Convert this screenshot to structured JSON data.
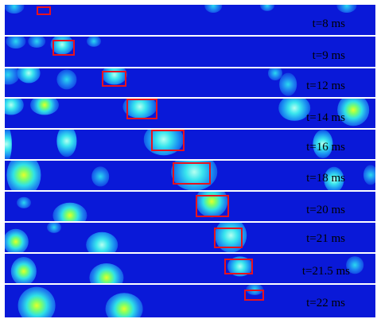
{
  "frames": [
    {
      "label": "t=8 ms"
    },
    {
      "label": "t=9 ms"
    },
    {
      "label": "t=12 ms"
    },
    {
      "label": "t=14 ms"
    },
    {
      "label": "t=16 ms"
    },
    {
      "label": "t=18 ms"
    },
    {
      "label": "t=20 ms"
    },
    {
      "label": "t=21 ms"
    },
    {
      "label": "t=21.5 ms"
    },
    {
      "label": "t=22 ms"
    }
  ],
  "colors": {
    "background": "#0a19d8",
    "separator": "#ffffff",
    "highlight_box": "#e8121e",
    "label_text": "#000000"
  }
}
